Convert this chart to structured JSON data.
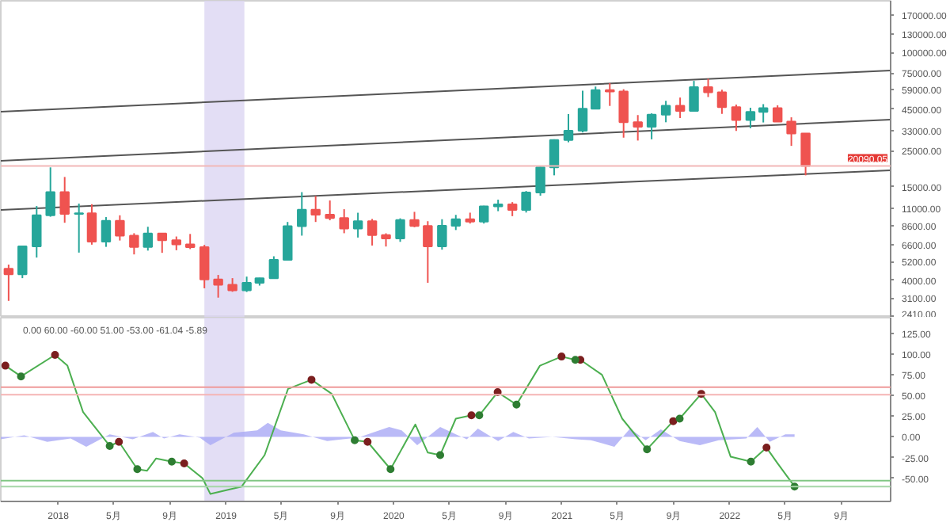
{
  "chart_data": [
    {
      "type": "candlestick",
      "log": true,
      "grid": false,
      "tick_labels": "y",
      "xlim": [
        "2017-08-29",
        "2022-12-17"
      ],
      "ylim": [
        2350,
        208000
      ],
      "yticks": [
        {
          "value": 170000,
          "label": "170000.00"
        },
        {
          "value": 130000,
          "label": "130000.00"
        },
        {
          "value": 100000,
          "label": "100000.00"
        },
        {
          "value": 75000,
          "label": "75000.00"
        },
        {
          "value": 59000,
          "label": "59000.00"
        },
        {
          "value": 45000,
          "label": "45000.00"
        },
        {
          "value": 33000,
          "label": "33000.00"
        },
        {
          "value": 25000,
          "label": "25000.00"
        },
        {
          "value": 15000,
          "label": "15000.00"
        },
        {
          "value": 11000,
          "label": "11000.00"
        },
        {
          "value": 8600,
          "label": "8600.00"
        },
        {
          "value": 6600,
          "label": "6600.00"
        },
        {
          "value": 5200,
          "label": "5200.00"
        },
        {
          "value": 4000,
          "label": "4000.00"
        },
        {
          "value": 3100,
          "label": "3100.00"
        },
        {
          "value": 2410,
          "label": "2410.00"
        }
      ],
      "x": [
        "2017-09-15",
        "2017-10-15",
        "2017-11-15",
        "2017-12-15",
        "2018-01-15",
        "2018-02-15",
        "2018-03-15",
        "2018-04-15",
        "2018-05-15",
        "2018-06-15",
        "2018-07-15",
        "2018-08-15",
        "2018-09-15",
        "2018-10-15",
        "2018-11-15",
        "2018-12-15",
        "2019-01-15",
        "2019-02-15",
        "2019-03-15",
        "2019-04-15",
        "2019-05-15",
        "2019-06-15",
        "2019-07-15",
        "2019-08-15",
        "2019-09-15",
        "2019-10-15",
        "2019-11-15",
        "2019-12-15",
        "2020-01-15",
        "2020-02-15",
        "2020-03-15",
        "2020-04-15",
        "2020-05-15",
        "2020-06-15",
        "2020-07-15",
        "2020-08-15",
        "2020-09-15",
        "2020-10-15",
        "2020-11-15",
        "2020-12-15",
        "2021-01-15",
        "2021-02-15",
        "2021-03-15",
        "2021-04-15",
        "2021-05-15",
        "2021-06-15",
        "2021-07-15",
        "2021-08-15",
        "2021-09-15",
        "2021-10-15",
        "2021-11-15",
        "2021-12-15",
        "2022-01-15",
        "2022-02-15",
        "2022-03-15",
        "2022-04-15",
        "2022-05-15",
        "2022-06-15"
      ],
      "ohlc": [
        [
          4700,
          4980,
          2980,
          4340
        ],
        [
          4340,
          6470,
          4110,
          6440
        ],
        [
          6440,
          11400,
          5500,
          10000
        ],
        [
          10000,
          19700,
          9800,
          13900
        ],
        [
          13900,
          17200,
          9000,
          10200
        ],
        [
          10200,
          11800,
          5900,
          10300
        ],
        [
          10300,
          11700,
          6600,
          6900
        ],
        [
          6900,
          9750,
          6400,
          9240
        ],
        [
          9240,
          10000,
          7000,
          7490
        ],
        [
          7490,
          7760,
          5750,
          6390
        ],
        [
          6390,
          8500,
          6070,
          7730
        ],
        [
          7730,
          7760,
          5880,
          7030
        ],
        [
          7030,
          7410,
          6100,
          6630
        ],
        [
          6630,
          7680,
          6200,
          6370
        ],
        [
          6370,
          6580,
          3560,
          4040
        ],
        [
          4040,
          4300,
          3120,
          3740
        ],
        [
          3740,
          4110,
          3390,
          3460
        ],
        [
          3460,
          4200,
          3380,
          3850
        ],
        [
          3850,
          4130,
          3700,
          4100
        ],
        [
          4100,
          5600,
          4070,
          5320
        ],
        [
          5320,
          9100,
          5320,
          8570
        ],
        [
          8570,
          13880,
          7500,
          10820
        ],
        [
          10820,
          13150,
          9100,
          10080
        ],
        [
          10080,
          12330,
          9320,
          9630
        ],
        [
          9630,
          10900,
          7760,
          8300
        ],
        [
          8300,
          10370,
          7300,
          9200
        ],
        [
          9200,
          9500,
          6520,
          7570
        ],
        [
          7570,
          7750,
          6430,
          7200
        ],
        [
          7200,
          9580,
          6870,
          9350
        ],
        [
          9350,
          10500,
          8450,
          8600
        ],
        [
          8600,
          9200,
          3850,
          6440
        ],
        [
          6440,
          9460,
          6150,
          8630
        ],
        [
          8630,
          10060,
          8120,
          9450
        ],
        [
          9450,
          10380,
          8900,
          9140
        ],
        [
          9140,
          11450,
          8900,
          11350
        ],
        [
          11350,
          12470,
          10600,
          11680
        ],
        [
          11680,
          12050,
          9880,
          10780
        ],
        [
          10780,
          14100,
          10400,
          13800
        ],
        [
          13800,
          19900,
          13200,
          19700
        ],
        [
          19700,
          29300,
          17600,
          29000
        ],
        [
          29000,
          41900,
          28100,
          33100
        ],
        [
          33100,
          58300,
          32300,
          45200
        ],
        [
          45200,
          61800,
          45000,
          58800
        ],
        [
          58800,
          64900,
          47000,
          57700
        ],
        [
          57700,
          59500,
          30000,
          37300
        ],
        [
          37300,
          41300,
          28800,
          35000
        ],
        [
          35000,
          42300,
          29300,
          41500
        ],
        [
          41500,
          50500,
          37300,
          47100
        ],
        [
          47100,
          52900,
          39600,
          43800
        ],
        [
          43800,
          67000,
          43300,
          61300
        ],
        [
          61300,
          69000,
          53300,
          57000
        ],
        [
          57000,
          59100,
          42000,
          46200
        ],
        [
          46200,
          47900,
          33000,
          38500
        ],
        [
          38500,
          45800,
          34300,
          43200
        ],
        [
          43200,
          48200,
          37200,
          45500
        ],
        [
          45500,
          47400,
          37600,
          37600
        ],
        [
          37600,
          40000,
          26700,
          31800
        ],
        [
          31800,
          31900,
          17600,
          20090.05
        ]
      ],
      "colors": [
        "#ef5350",
        "#26a69a",
        "#26a69a",
        "#26a69a",
        "#ef5350",
        "#26a69a",
        "#ef5350",
        "#26a69a",
        "#ef5350",
        "#ef5350",
        "#26a69a",
        "#ef5350",
        "#ef5350",
        "#ef5350",
        "#ef5350",
        "#ef5350",
        "#ef5350",
        "#26a69a",
        "#26a69a",
        "#26a69a",
        "#26a69a",
        "#26a69a",
        "#ef5350",
        "#ef5350",
        "#ef5350",
        "#26a69a",
        "#ef5350",
        "#ef5350",
        "#26a69a",
        "#ef5350",
        "#ef5350",
        "#26a69a",
        "#26a69a",
        "#ef5350",
        "#26a69a",
        "#26a69a",
        "#ef5350",
        "#26a69a",
        "#26a69a",
        "#26a69a",
        "#26a69a",
        "#26a69a",
        "#26a69a",
        "#ef5350",
        "#ef5350",
        "#ef5350",
        "#26a69a",
        "#26a69a",
        "#ef5350",
        "#26a69a",
        "#ef5350",
        "#ef5350",
        "#ef5350",
        "#26a69a",
        "#26a69a",
        "#ef5350",
        "#ef5350",
        "#ef5350"
      ],
      "series": [
        {
          "type": "line",
          "color": "#555555",
          "x": [
            "2017-08-29",
            "2022-12-17"
          ],
          "values": [
            43300,
            77600
          ]
        },
        {
          "type": "line",
          "color": "#555555",
          "x": [
            "2017-08-29",
            "2022-12-17"
          ],
          "values": [
            21600,
            38700
          ]
        },
        {
          "type": "line",
          "color": "#555555",
          "x": [
            "2017-08-29",
            "2022-12-17"
          ],
          "values": [
            10800,
            18900
          ]
        }
      ],
      "ref_lines": [
        {
          "axis": "y",
          "value": 20090.05,
          "label": "20090.05",
          "color": "#f2b8b8"
        }
      ],
      "bands": [
        {
          "axis": "x",
          "from": "2018-11-15",
          "to": "2019-02-10",
          "color": "#dcd6f2"
        }
      ]
    },
    {
      "type": "line",
      "grid": false,
      "marker": "none",
      "xlim": [
        "2017-08-29",
        "2022-12-17"
      ],
      "ylim": [
        -78,
        144
      ],
      "xticks": [
        {
          "value": "2018-01-01",
          "label": "2018"
        },
        {
          "value": "2018-05-01",
          "label": "5月"
        },
        {
          "value": "2018-09-01",
          "label": "9月"
        },
        {
          "value": "2019-01-01",
          "label": "2019"
        },
        {
          "value": "2019-05-01",
          "label": "5月"
        },
        {
          "value": "2019-09-01",
          "label": "9月"
        },
        {
          "value": "2020-01-01",
          "label": "2020"
        },
        {
          "value": "2020-05-01",
          "label": "5月"
        },
        {
          "value": "2020-09-01",
          "label": "9月"
        },
        {
          "value": "2021-01-01",
          "label": "2021"
        },
        {
          "value": "2021-05-01",
          "label": "5月"
        },
        {
          "value": "2021-09-01",
          "label": "9月"
        },
        {
          "value": "2022-01-01",
          "label": "2022"
        },
        {
          "value": "2022-05-01",
          "label": "5月"
        },
        {
          "value": "2022-09-01",
          "label": "9月"
        }
      ],
      "yticks": [
        {
          "value": 125,
          "label": "125.00"
        },
        {
          "value": 100,
          "label": "100.00"
        },
        {
          "value": 75,
          "label": "75.00"
        },
        {
          "value": 50,
          "label": "50.00"
        },
        {
          "value": 25,
          "label": "25.00"
        },
        {
          "value": 0,
          "label": "0.00"
        },
        {
          "value": -25,
          "label": "-25.00"
        },
        {
          "value": -50,
          "label": "-50.00"
        }
      ],
      "annotations": [
        "0.00 60.00 -60.00 51.00 -53.00 -61.04 -5.89"
      ],
      "series": [
        {
          "type": "area",
          "color": "#a9a9f5",
          "x": [
            "2017-08-29",
            "2017-10-19",
            "2017-12-08",
            "2018-01-28",
            "2018-03-03",
            "2018-04-23",
            "2018-06-12",
            "2018-07-26",
            "2018-08-19",
            "2018-09-22",
            "2018-11-05",
            "2018-11-28",
            "2019-01-18",
            "2019-03-10",
            "2019-04-02",
            "2019-04-30",
            "2019-06-19",
            "2019-08-09",
            "2019-09-12",
            "2019-10-15",
            "2019-12-22",
            "2020-01-18",
            "2020-02-21",
            "2020-04-11",
            "2020-05-15",
            "2020-06-08",
            "2020-07-02",
            "2020-08-15",
            "2020-09-17",
            "2020-10-21",
            "2020-12-11",
            "2021-01-31",
            "2021-03-05",
            "2021-04-25",
            "2021-05-29",
            "2021-07-02",
            "2021-08-04",
            "2021-09-14",
            "2021-10-28",
            "2021-12-08",
            "2022-02-06",
            "2022-03-02",
            "2022-03-29",
            "2022-05-02",
            "2022-05-22"
          ],
          "values": [
            -3,
            2,
            -6,
            -2,
            -12,
            3,
            -3,
            6,
            -2,
            3,
            -1,
            -10,
            5,
            8,
            17,
            8,
            3,
            -5,
            -3,
            -1,
            12,
            8,
            -10,
            12,
            3,
            -3,
            10,
            -5,
            6,
            -2,
            0,
            -3,
            -4,
            -12,
            10,
            -4,
            9,
            -5,
            -10,
            -4,
            -2,
            12,
            -6,
            3,
            3
          ]
        },
        {
          "color": "#4caf50",
          "x": [
            "2017-09-08",
            "2017-10-12",
            "2017-12-25",
            "2018-01-21",
            "2018-02-24",
            "2018-04-23",
            "2018-05-13",
            "2018-06-22",
            "2018-07-13",
            "2018-08-02",
            "2018-09-05",
            "2018-10-02",
            "2018-11-11",
            "2018-11-28",
            "2019-02-04",
            "2019-03-26",
            "2019-05-16",
            "2019-07-06",
            "2019-08-19",
            "2019-10-08",
            "2019-11-05",
            "2019-12-25",
            "2020-02-17",
            "2020-03-15",
            "2020-04-11",
            "2020-05-15",
            "2020-06-18",
            "2020-07-05",
            "2020-08-14",
            "2020-09-24",
            "2020-11-14",
            "2020-12-31",
            "2021-01-30",
            "2021-02-10",
            "2021-03-29",
            "2021-05-12",
            "2021-07-05",
            "2021-08-31",
            "2021-09-14",
            "2021-10-31",
            "2021-11-30",
            "2022-01-03",
            "2022-02-16",
            "2022-03-22",
            "2022-04-15",
            "2022-05-22"
          ],
          "values": [
            86,
            73,
            99,
            86,
            30,
            -11,
            -6,
            -39,
            -41,
            -26,
            -30,
            -32,
            -50,
            -69,
            -60,
            -22,
            58,
            69,
            52,
            -4,
            -6,
            -39,
            15,
            -19,
            -22,
            22,
            26,
            26,
            54,
            39,
            86,
            97,
            93,
            93,
            75,
            22,
            -15,
            19,
            22,
            52,
            30,
            -24,
            -30,
            -13,
            -32,
            -60
          ]
        },
        {
          "type": "scatter",
          "marker": "circle",
          "color": "#7b1f1f",
          "x": [
            "2017-09-08",
            "2017-12-25",
            "2018-05-13",
            "2018-10-02",
            "2019-07-06",
            "2019-11-05",
            "2020-06-18",
            "2020-08-14",
            "2020-12-31",
            "2021-02-10",
            "2021-08-31",
            "2021-10-31",
            "2022-03-22"
          ],
          "values": [
            86,
            99,
            -6,
            -32,
            69,
            -6,
            26,
            54,
            97,
            93,
            19,
            52,
            -13
          ]
        },
        {
          "type": "scatter",
          "marker": "circle",
          "color": "#2e7d32",
          "x": [
            "2017-10-12",
            "2018-04-23",
            "2018-06-22",
            "2018-09-05",
            "2019-10-08",
            "2019-12-25",
            "2020-04-11",
            "2020-07-05",
            "2020-09-24",
            "2021-01-30",
            "2021-07-05",
            "2021-09-14",
            "2022-02-16",
            "2022-05-22"
          ],
          "values": [
            73,
            -11,
            -39,
            -30,
            -4,
            -39,
            -22,
            26,
            39,
            93,
            -15,
            22,
            -30,
            -60
          ]
        }
      ],
      "ref_lines": [
        {
          "axis": "y",
          "value": 60,
          "color": "#ef9a9a"
        },
        {
          "axis": "y",
          "value": 51,
          "color": "#f5b5b5"
        },
        {
          "axis": "y",
          "value": -53,
          "color": "#81c784"
        },
        {
          "axis": "y",
          "value": -60,
          "color": "#a5d6a7"
        }
      ],
      "bands": [
        {
          "axis": "x",
          "from": "2018-11-15",
          "to": "2019-02-10",
          "color": "#dcd6f2"
        }
      ]
    }
  ]
}
